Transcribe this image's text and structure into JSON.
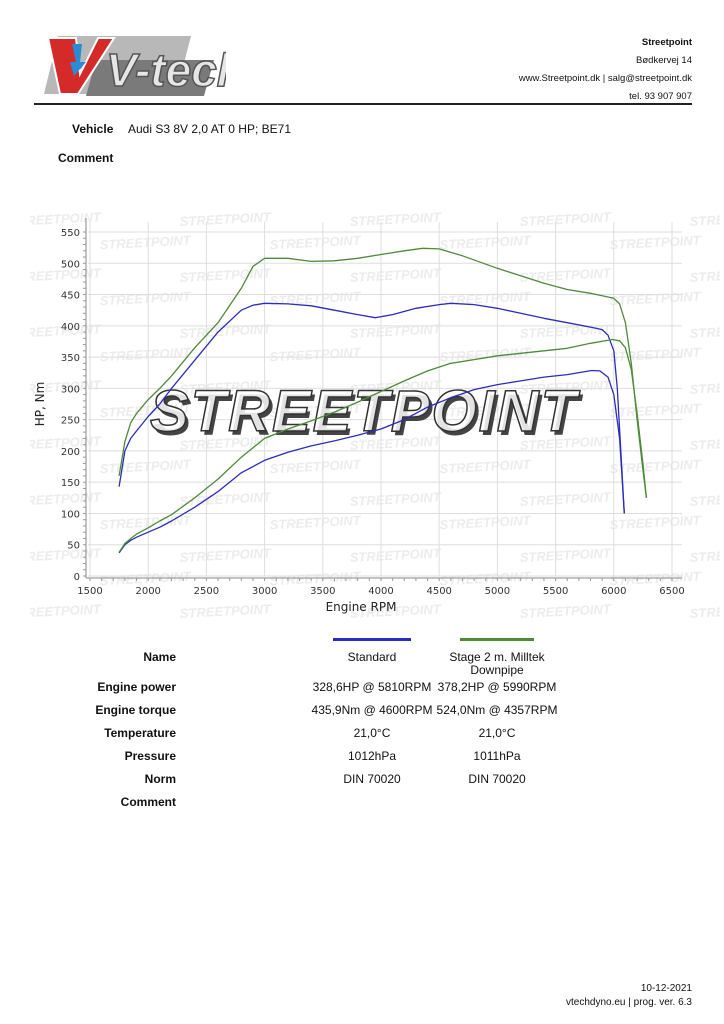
{
  "header": {
    "logo_text": "V-tech",
    "company": {
      "name": "Streetpoint",
      "address": "Bødkervej 14",
      "web_email": "www.Streetpoint.dk | salg@streetpoint.dk",
      "phone": "tel. 93 907 907"
    }
  },
  "vehicle": {
    "label": "Vehicle",
    "value": "Audi S3 8V 2,0 AT 0 HP; BE71",
    "comment_label": "Comment"
  },
  "watermark": "STREETPOINT",
  "chart_data": {
    "type": "line",
    "title": "",
    "xlabel": "Engine RPM",
    "ylabel": "HP, Nm",
    "xlim": [
      1500,
      6500
    ],
    "ylim": [
      0,
      550
    ],
    "xticks": [
      1500,
      2000,
      2500,
      3000,
      3500,
      4000,
      4500,
      5000,
      5500,
      6000,
      6500
    ],
    "yticks": [
      0,
      50,
      100,
      150,
      200,
      250,
      300,
      350,
      400,
      450,
      500,
      550
    ],
    "grid": true,
    "series": [
      {
        "name": "Standard torque (Nm)",
        "color": "#2b2bbf",
        "x": [
          1750,
          1800,
          1850,
          1900,
          2000,
          2100,
          2200,
          2400,
          2600,
          2800,
          2900,
          3000,
          3200,
          3400,
          3600,
          3800,
          3950,
          4100,
          4300,
          4500,
          4600,
          4800,
          5000,
          5200,
          5400,
          5600,
          5800,
          5900,
          5950,
          6000,
          6030,
          6060,
          6090
        ],
        "y": [
          143,
          200,
          220,
          232,
          255,
          275,
          300,
          345,
          390,
          425,
          433,
          436,
          435,
          432,
          425,
          418,
          413,
          418,
          428,
          434,
          436,
          434,
          428,
          420,
          412,
          405,
          398,
          394,
          385,
          360,
          300,
          200,
          100
        ]
      },
      {
        "name": "Standard power (HP)",
        "color": "#2b2bbf",
        "x": [
          1750,
          1800,
          1850,
          1900,
          2000,
          2100,
          2200,
          2400,
          2600,
          2800,
          3000,
          3200,
          3400,
          3600,
          3800,
          4000,
          4200,
          4400,
          4600,
          4800,
          5000,
          5200,
          5400,
          5600,
          5810,
          5880,
          5950,
          6000,
          6050,
          6090
        ],
        "y": [
          37,
          50,
          57,
          62,
          70,
          78,
          88,
          110,
          135,
          165,
          185,
          198,
          208,
          216,
          225,
          235,
          250,
          270,
          285,
          298,
          306,
          312,
          318,
          322,
          328.6,
          328,
          318,
          290,
          220,
          100
        ]
      },
      {
        "name": "Stage 2 m. Milltek Downpipe torque (Nm)",
        "color": "#4e8a3a",
        "x": [
          1750,
          1800,
          1850,
          1900,
          2000,
          2100,
          2200,
          2400,
          2600,
          2800,
          2900,
          3000,
          3200,
          3400,
          3600,
          3800,
          4000,
          4200,
          4357,
          4500,
          4700,
          5000,
          5200,
          5400,
          5600,
          5800,
          5900,
          6000,
          6050,
          6100,
          6150,
          6200,
          6250,
          6280
        ],
        "y": [
          160,
          215,
          245,
          260,
          282,
          300,
          320,
          365,
          405,
          460,
          495,
          508,
          508,
          503,
          504,
          508,
          514,
          520,
          524,
          523,
          512,
          492,
          480,
          468,
          458,
          452,
          448,
          444,
          435,
          405,
          340,
          250,
          170,
          125
        ]
      },
      {
        "name": "Stage 2 m. Milltek Downpipe power (HP)",
        "color": "#4e8a3a",
        "x": [
          1750,
          1800,
          1850,
          1900,
          2000,
          2100,
          2200,
          2400,
          2600,
          2800,
          3000,
          3200,
          3400,
          3600,
          3800,
          4000,
          4200,
          4400,
          4600,
          4800,
          5000,
          5200,
          5400,
          5600,
          5800,
          5990,
          6050,
          6100,
          6150,
          6200,
          6250,
          6280
        ],
        "y": [
          38,
          52,
          60,
          67,
          77,
          88,
          98,
          125,
          155,
          190,
          220,
          235,
          248,
          262,
          278,
          295,
          312,
          328,
          340,
          346,
          352,
          356,
          360,
          364,
          372,
          378.2,
          376,
          365,
          330,
          260,
          180,
          125
        ]
      }
    ],
    "legend": [
      {
        "name": "Standard",
        "color": "#2b2bbf"
      },
      {
        "name": "Stage 2 m. Milltek Downpipe",
        "color": "#4e8a3a"
      }
    ]
  },
  "results": {
    "row_labels": [
      "Name",
      "Engine power",
      "Engine torque",
      "Temperature",
      "Pressure",
      "Norm",
      "Comment"
    ],
    "runs": [
      {
        "color": "#2b2bbf",
        "name": "Standard",
        "power": "328,6HP @ 5810RPM",
        "torque": "435,9Nm @ 4600RPM",
        "temperature": "21,0°C",
        "pressure": "1012hPa",
        "norm": "DIN 70020",
        "comment": ""
      },
      {
        "color": "#4e8a3a",
        "name": "Stage 2 m. Milltek Downpipe",
        "power": "378,2HP @ 5990RPM",
        "torque": "524,0Nm @ 4357RPM",
        "temperature": "21,0°C",
        "pressure": "1011hPa",
        "norm": "DIN 70020",
        "comment": ""
      }
    ]
  },
  "footer": {
    "date": "10-12-2021",
    "program": "vtechdyno.eu | prog. ver. 6.3"
  }
}
